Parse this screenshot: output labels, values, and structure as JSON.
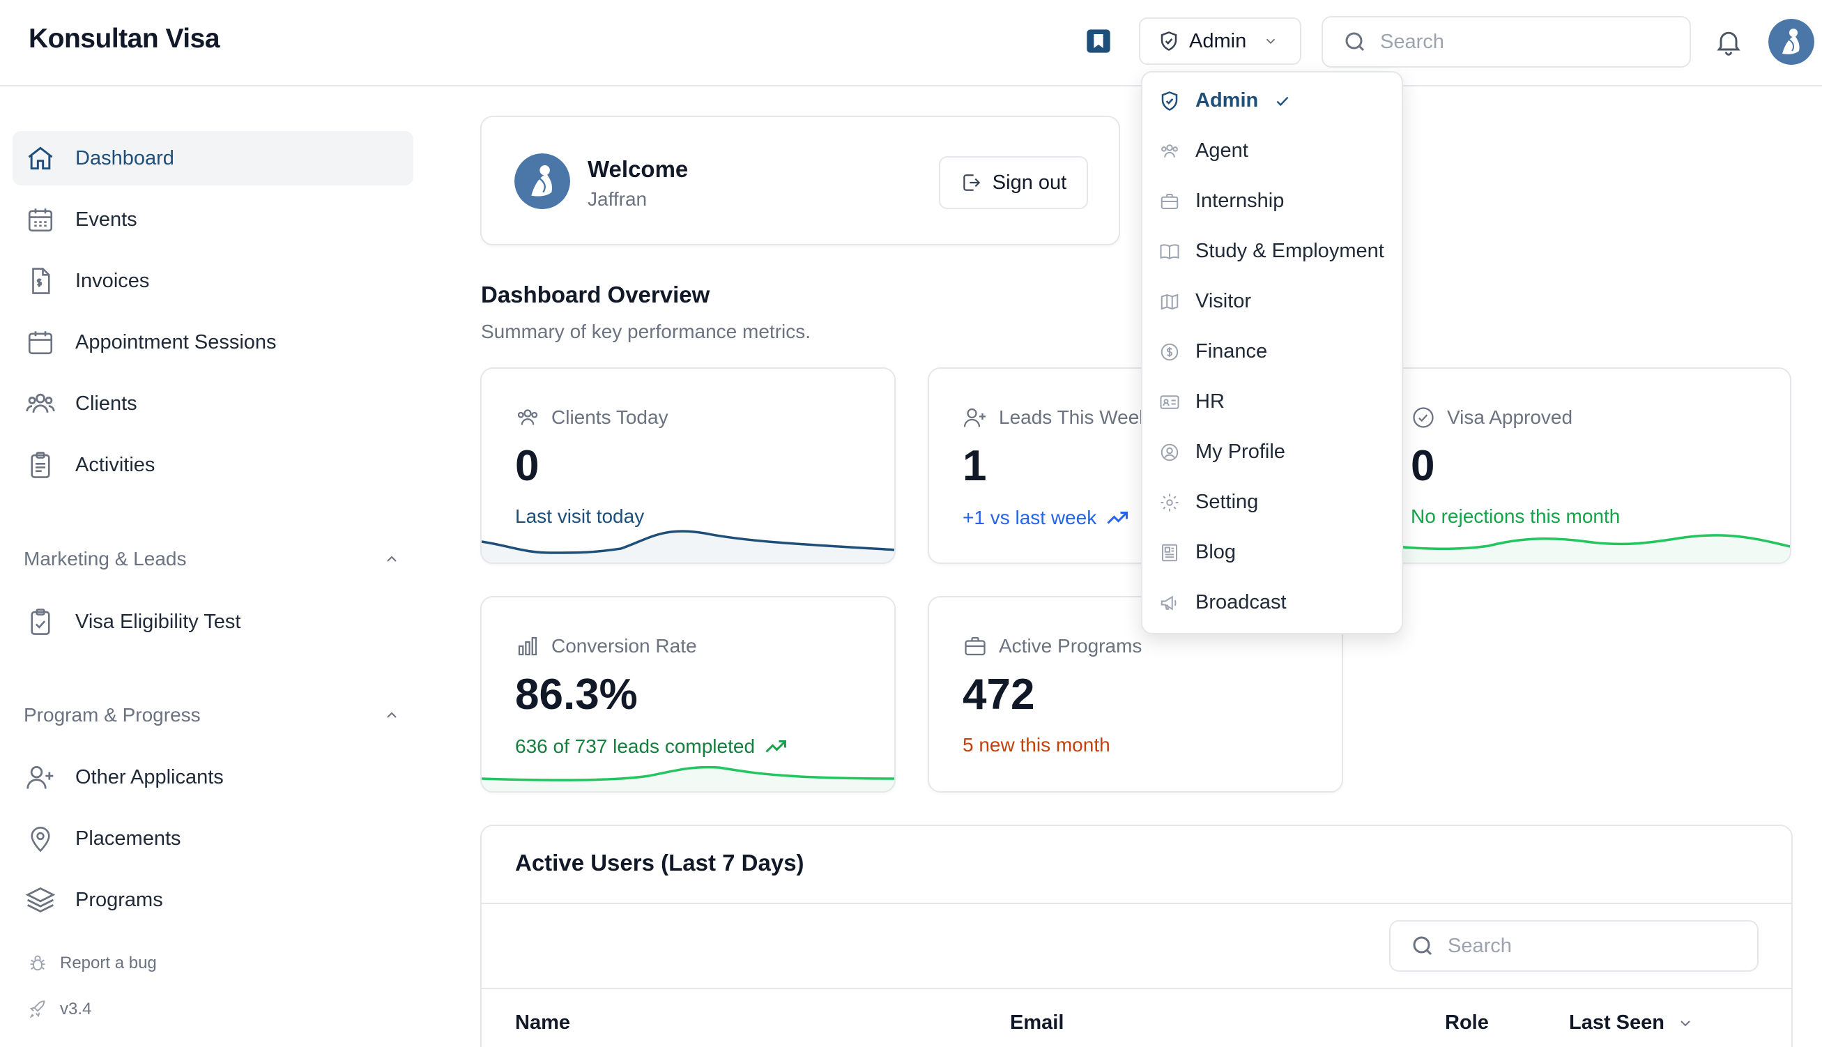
{
  "header": {
    "brand": "Konsultan Visa",
    "role_label": "Admin",
    "search_placeholder": "Search"
  },
  "sidebar": {
    "items": [
      {
        "label": "Dashboard",
        "icon": "home-icon",
        "active": true
      },
      {
        "label": "Events",
        "icon": "calendar-grid-icon"
      },
      {
        "label": "Invoices",
        "icon": "invoice-icon"
      },
      {
        "label": "Appointment Sessions",
        "icon": "calendar-icon"
      },
      {
        "label": "Clients",
        "icon": "users-icon"
      },
      {
        "label": "Activities",
        "icon": "clipboard-icon"
      }
    ],
    "marketing": {
      "title": "Marketing & Leads",
      "items": [
        {
          "label": "Visa Eligibility Test",
          "icon": "clipboard-check-icon"
        }
      ]
    },
    "program": {
      "title": "Program & Progress",
      "items": [
        {
          "label": "Other Applicants",
          "icon": "user-plus-icon"
        },
        {
          "label": "Placements",
          "icon": "map-pin-icon"
        },
        {
          "label": "Programs",
          "icon": "layers-icon"
        }
      ]
    },
    "footer": {
      "report_bug": "Report a bug",
      "version": "v3.4"
    }
  },
  "welcome": {
    "title": "Welcome",
    "name": "Jaffran",
    "signout_label": "Sign out"
  },
  "overview": {
    "title": "Dashboard Overview",
    "subtitle": "Summary of key performance metrics."
  },
  "stats": {
    "clients_today": {
      "label": "Clients Today",
      "value": "0",
      "note": "Last visit today",
      "color": "#1e4f7a"
    },
    "leads_week": {
      "label": "Leads This Week",
      "value": "1",
      "note": "+1 vs last week",
      "color": "#2563eb"
    },
    "visa_approved": {
      "label": "Visa Approved",
      "value": "0",
      "note": "No rejections this month",
      "color": "#16a34a"
    },
    "conversion": {
      "label": "Conversion Rate",
      "value": "86.3%",
      "note": "636 of 737 leads completed",
      "color": "#15803d"
    },
    "programs": {
      "label": "Active Programs",
      "value": "472",
      "note": "5 new this month",
      "color": "#c2410c"
    }
  },
  "active_users": {
    "title": "Active Users (Last 7 Days)",
    "search_placeholder": "Search",
    "columns": [
      "Name",
      "Email",
      "Role",
      "Last Seen"
    ]
  },
  "role_menu": {
    "items": [
      {
        "label": "Admin",
        "icon": "shield-check-icon",
        "selected": true
      },
      {
        "label": "Agent",
        "icon": "users-icon"
      },
      {
        "label": "Internship",
        "icon": "briefcase-icon"
      },
      {
        "label": "Study & Employment",
        "icon": "book-icon"
      },
      {
        "label": "Visitor",
        "icon": "map-icon"
      },
      {
        "label": "Finance",
        "icon": "dollar-circle-icon"
      },
      {
        "label": "HR",
        "icon": "id-card-icon"
      },
      {
        "label": "My Profile",
        "icon": "user-circle-icon"
      },
      {
        "label": "Setting",
        "icon": "gear-icon"
      },
      {
        "label": "Blog",
        "icon": "newspaper-icon"
      },
      {
        "label": "Broadcast",
        "icon": "megaphone-icon"
      }
    ]
  }
}
